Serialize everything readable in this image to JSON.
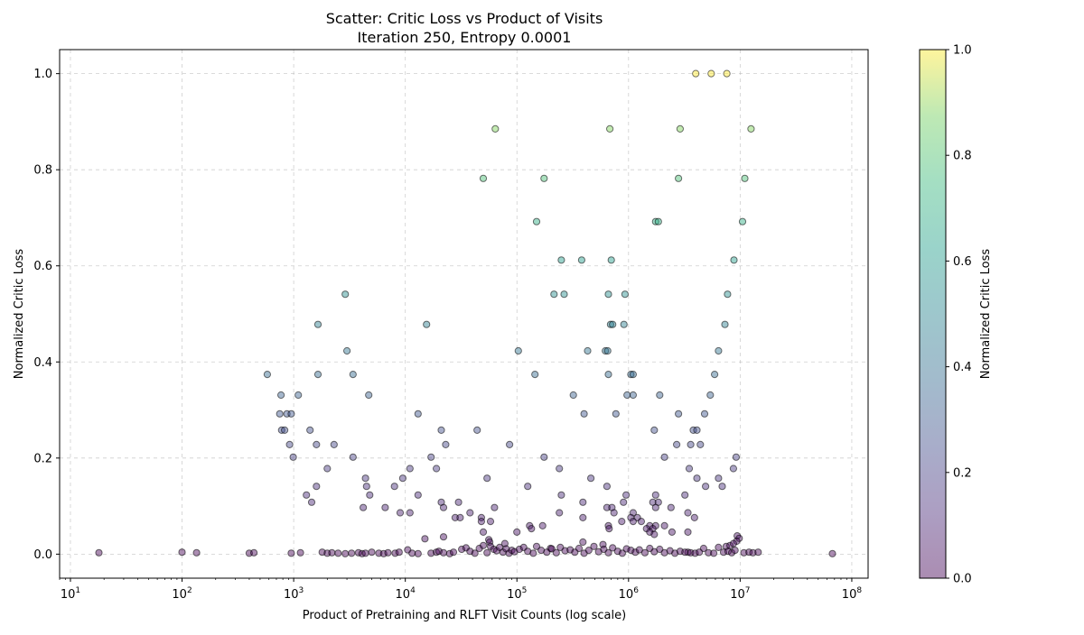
{
  "chart_data": {
    "type": "scatter",
    "title": [
      "Scatter: Critic Loss vs Product of Visits",
      "Iteration 250, Entropy 0.0001"
    ],
    "xlabel": "Product of Pretraining and RLFT Visit Counts (log scale)",
    "ylabel": "Normalized Critic Loss",
    "xscale": "log",
    "xlim": [
      8,
      140000000
    ],
    "ylim": [
      -0.05,
      1.05
    ],
    "x_ticks": [
      10,
      100,
      1000,
      10000,
      100000,
      1000000,
      10000000,
      100000000
    ],
    "x_tick_labels": [
      {
        "base": "10",
        "exp": "1"
      },
      {
        "base": "10",
        "exp": "2"
      },
      {
        "base": "10",
        "exp": "3"
      },
      {
        "base": "10",
        "exp": "4"
      },
      {
        "base": "10",
        "exp": "5"
      },
      {
        "base": "10",
        "exp": "6"
      },
      {
        "base": "10",
        "exp": "7"
      },
      {
        "base": "10",
        "exp": "8"
      }
    ],
    "y_ticks": [
      0.0,
      0.2,
      0.4,
      0.6,
      0.8,
      1.0
    ],
    "y_tick_labels": [
      "0.0",
      "0.2",
      "0.4",
      "0.6",
      "0.8",
      "1.0"
    ],
    "grid": true,
    "colormap": "viridis",
    "colorbar": {
      "label": "Normalized Critic Loss",
      "range": [
        0,
        1
      ],
      "ticks": [
        0.0,
        0.2,
        0.4,
        0.6,
        0.8,
        1.0
      ],
      "tick_labels": [
        "0.0",
        "0.2",
        "0.4",
        "0.6",
        "0.8",
        "1.0"
      ]
    },
    "points": [
      [
        4000000,
        1.0
      ],
      [
        5500000,
        1.0
      ],
      [
        7600000,
        1.0
      ],
      [
        64000,
        0.885
      ],
      [
        680000,
        0.885
      ],
      [
        2900000,
        0.885
      ],
      [
        12500000,
        0.885
      ],
      [
        50000,
        0.782
      ],
      [
        175000,
        0.782
      ],
      [
        2800000,
        0.782
      ],
      [
        11000000,
        0.782
      ],
      [
        150000,
        0.692
      ],
      [
        1750000,
        0.692
      ],
      [
        1850000,
        0.692
      ],
      [
        10500000,
        0.692
      ],
      [
        250000,
        0.612
      ],
      [
        380000,
        0.612
      ],
      [
        700000,
        0.612
      ],
      [
        8800000,
        0.612
      ],
      [
        2900,
        0.541
      ],
      [
        215000,
        0.541
      ],
      [
        265000,
        0.541
      ],
      [
        660000,
        0.541
      ],
      [
        930000,
        0.541
      ],
      [
        7700000,
        0.541
      ],
      [
        1650,
        0.478
      ],
      [
        15500,
        0.478
      ],
      [
        690000,
        0.478
      ],
      [
        720000,
        0.478
      ],
      [
        910000,
        0.478
      ],
      [
        7300000,
        0.478
      ],
      [
        3000,
        0.423
      ],
      [
        103000,
        0.423
      ],
      [
        430000,
        0.423
      ],
      [
        620000,
        0.423
      ],
      [
        650000,
        0.423
      ],
      [
        6400000,
        0.423
      ],
      [
        580,
        0.374
      ],
      [
        1650,
        0.374
      ],
      [
        3400,
        0.374
      ],
      [
        145000,
        0.374
      ],
      [
        660000,
        0.374
      ],
      [
        1050000,
        0.374
      ],
      [
        1100000,
        0.374
      ],
      [
        5900000,
        0.374
      ],
      [
        770,
        0.331
      ],
      [
        1100,
        0.331
      ],
      [
        4700,
        0.331
      ],
      [
        320000,
        0.331
      ],
      [
        970000,
        0.331
      ],
      [
        1100000,
        0.331
      ],
      [
        1900000,
        0.331
      ],
      [
        5400000,
        0.331
      ],
      [
        750,
        0.292
      ],
      [
        870,
        0.292
      ],
      [
        950,
        0.292
      ],
      [
        13000,
        0.292
      ],
      [
        400000,
        0.292
      ],
      [
        770000,
        0.292
      ],
      [
        2800000,
        0.292
      ],
      [
        4800000,
        0.292
      ],
      [
        780,
        0.258
      ],
      [
        830,
        0.258
      ],
      [
        1400,
        0.258
      ],
      [
        21000,
        0.258
      ],
      [
        44000,
        0.258
      ],
      [
        1700000,
        0.258
      ],
      [
        3800000,
        0.258
      ],
      [
        4100000,
        0.258
      ],
      [
        920,
        0.228
      ],
      [
        1600,
        0.228
      ],
      [
        2300,
        0.228
      ],
      [
        23000,
        0.228
      ],
      [
        86000,
        0.228
      ],
      [
        2700000,
        0.228
      ],
      [
        3600000,
        0.228
      ],
      [
        4400000,
        0.228
      ],
      [
        990,
        0.202
      ],
      [
        3400,
        0.202
      ],
      [
        17000,
        0.202
      ],
      [
        175000,
        0.202
      ],
      [
        2100000,
        0.202
      ],
      [
        9200000,
        0.202
      ],
      [
        2000,
        0.178
      ],
      [
        11000,
        0.178
      ],
      [
        19000,
        0.178
      ],
      [
        240000,
        0.178
      ],
      [
        3500000,
        0.178
      ],
      [
        8700000,
        0.178
      ],
      [
        4400,
        0.158
      ],
      [
        9500,
        0.158
      ],
      [
        54000,
        0.158
      ],
      [
        460000,
        0.158
      ],
      [
        4100000,
        0.158
      ],
      [
        6400000,
        0.158
      ],
      [
        1600,
        0.141
      ],
      [
        4500,
        0.141
      ],
      [
        8000,
        0.141
      ],
      [
        125000,
        0.141
      ],
      [
        640000,
        0.141
      ],
      [
        4900000,
        0.141
      ],
      [
        6900000,
        0.141
      ],
      [
        1300,
        0.123
      ],
      [
        4800,
        0.123
      ],
      [
        13000,
        0.123
      ],
      [
        250000,
        0.123
      ],
      [
        950000,
        0.123
      ],
      [
        1750000,
        0.123
      ],
      [
        3200000,
        0.123
      ],
      [
        1450,
        0.108
      ],
      [
        21000,
        0.108
      ],
      [
        30000,
        0.108
      ],
      [
        390000,
        0.108
      ],
      [
        900000,
        0.108
      ],
      [
        1650000,
        0.108
      ],
      [
        1850000,
        0.108
      ],
      [
        4200,
        0.097
      ],
      [
        6600,
        0.097
      ],
      [
        22000,
        0.097
      ],
      [
        63000,
        0.097
      ],
      [
        640000,
        0.097
      ],
      [
        710000,
        0.097
      ],
      [
        1750000,
        0.097
      ],
      [
        2400000,
        0.097
      ],
      [
        9000,
        0.086
      ],
      [
        11000,
        0.086
      ],
      [
        38000,
        0.086
      ],
      [
        240000,
        0.086
      ],
      [
        740000,
        0.086
      ],
      [
        1100000,
        0.086
      ],
      [
        3400000,
        0.086
      ],
      [
        28000,
        0.076
      ],
      [
        31000,
        0.076
      ],
      [
        48000,
        0.076
      ],
      [
        390000,
        0.076
      ],
      [
        1050000,
        0.076
      ],
      [
        1200000,
        0.076
      ],
      [
        3900000,
        0.076
      ],
      [
        48000,
        0.068
      ],
      [
        58000,
        0.068
      ],
      [
        870000,
        0.068
      ],
      [
        1100000,
        0.068
      ],
      [
        1300000,
        0.068
      ],
      [
        130000,
        0.059
      ],
      [
        170000,
        0.059
      ],
      [
        660000,
        0.059
      ],
      [
        1550000,
        0.059
      ],
      [
        1750000,
        0.059
      ],
      [
        2100000,
        0.059
      ],
      [
        135000,
        0.053
      ],
      [
        670000,
        0.053
      ],
      [
        1450000,
        0.053
      ],
      [
        1650000,
        0.053
      ],
      [
        50000,
        0.046
      ],
      [
        100000,
        0.046
      ],
      [
        1550000,
        0.046
      ],
      [
        2450000,
        0.046
      ],
      [
        3400000,
        0.046
      ],
      [
        1700000,
        0.041
      ],
      [
        9400000,
        0.038
      ],
      [
        15000,
        0.032
      ],
      [
        56000,
        0.03
      ],
      [
        9800000,
        0.033
      ],
      [
        22000,
        0.036
      ],
      [
        57000,
        0.025
      ],
      [
        390000,
        0.025
      ],
      [
        590000,
        0.02
      ],
      [
        9300000,
        0.027
      ],
      [
        78000,
        0.022
      ],
      [
        200000,
        0.012
      ],
      [
        4700000,
        0.012
      ],
      [
        6400000,
        0.014
      ],
      [
        7500000,
        0.016
      ],
      [
        8100000,
        0.018
      ],
      [
        8700000,
        0.022
      ],
      [
        3400000,
        0.004
      ],
      [
        18,
        0.003
      ],
      [
        100,
        0.004
      ],
      [
        135,
        0.003
      ],
      [
        400,
        0.002
      ],
      [
        440,
        0.003
      ],
      [
        950,
        0.002
      ],
      [
        1150,
        0.003
      ],
      [
        1800,
        0.004
      ],
      [
        2000,
        0.002
      ],
      [
        2200,
        0.003
      ],
      [
        2500,
        0.002
      ],
      [
        2900,
        0.001
      ],
      [
        3300,
        0.002
      ],
      [
        3800,
        0.003
      ],
      [
        4100,
        0.001
      ],
      [
        4400,
        0.002
      ],
      [
        5000,
        0.004
      ],
      [
        5800,
        0.002
      ],
      [
        6400,
        0.001
      ],
      [
        7000,
        0.003
      ],
      [
        8100,
        0.002
      ],
      [
        8800,
        0.004
      ],
      [
        10500,
        0.009
      ],
      [
        11500,
        0.002
      ],
      [
        13000,
        0.001
      ],
      [
        17000,
        0.002
      ],
      [
        19000,
        0.004
      ],
      [
        20000,
        0.006
      ],
      [
        22000,
        0.003
      ],
      [
        25000,
        0.001
      ],
      [
        27000,
        0.004
      ],
      [
        32000,
        0.01
      ],
      [
        35000,
        0.013
      ],
      [
        38000,
        0.006
      ],
      [
        42000,
        0.002
      ],
      [
        46000,
        0.012
      ],
      [
        50000,
        0.018
      ],
      [
        54000,
        0.003
      ],
      [
        58000,
        0.016
      ],
      [
        62000,
        0.01
      ],
      [
        66000,
        0.007
      ],
      [
        70000,
        0.014
      ],
      [
        75000,
        0.004
      ],
      [
        80000,
        0.011
      ],
      [
        85000,
        0.002
      ],
      [
        90000,
        0.008
      ],
      [
        95000,
        0.005
      ],
      [
        105000,
        0.01
      ],
      [
        115000,
        0.014
      ],
      [
        125000,
        0.006
      ],
      [
        140000,
        0.002
      ],
      [
        150000,
        0.016
      ],
      [
        165000,
        0.008
      ],
      [
        185000,
        0.004
      ],
      [
        205000,
        0.011
      ],
      [
        225000,
        0.003
      ],
      [
        245000,
        0.014
      ],
      [
        270000,
        0.007
      ],
      [
        300000,
        0.009
      ],
      [
        330000,
        0.004
      ],
      [
        360000,
        0.012
      ],
      [
        400000,
        0.002
      ],
      [
        440000,
        0.008
      ],
      [
        490000,
        0.016
      ],
      [
        540000,
        0.005
      ],
      [
        600000,
        0.01
      ],
      [
        660000,
        0.003
      ],
      [
        720000,
        0.013
      ],
      [
        800000,
        0.006
      ],
      [
        880000,
        0.002
      ],
      [
        960000,
        0.011
      ],
      [
        1050000,
        0.008
      ],
      [
        1150000,
        0.004
      ],
      [
        1250000,
        0.009
      ],
      [
        1400000,
        0.003
      ],
      [
        1550000,
        0.012
      ],
      [
        1700000,
        0.005
      ],
      [
        1900000,
        0.01
      ],
      [
        2100000,
        0.003
      ],
      [
        2350000,
        0.007
      ],
      [
        2600000,
        0.002
      ],
      [
        2900000,
        0.006
      ],
      [
        3200000,
        0.004
      ],
      [
        3600000,
        0.003
      ],
      [
        3950000,
        0.002
      ],
      [
        4300000,
        0.004
      ],
      [
        5200000,
        0.003
      ],
      [
        5800000,
        0.002
      ],
      [
        7100000,
        0.004
      ],
      [
        7800000,
        0.006
      ],
      [
        8400000,
        0.003
      ],
      [
        9000000,
        0.008
      ],
      [
        10800000,
        0.003
      ],
      [
        12000000,
        0.004
      ],
      [
        13000000,
        0.003
      ],
      [
        14500000,
        0.004
      ],
      [
        67000000,
        0.001
      ]
    ]
  }
}
